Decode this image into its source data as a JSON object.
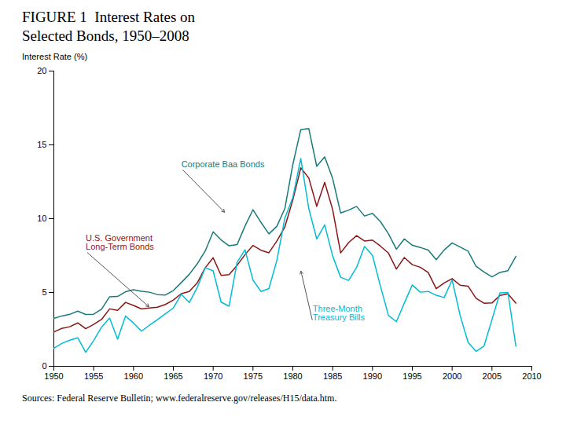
{
  "chart_data": {
    "type": "line",
    "title": "FIGURE 1  Interest Rates on",
    "subtitle": "Selected Bonds, 1950–2008",
    "ylabel": "Interest Rate (%)",
    "source": "Sources: Federal Reserve Bulletin; www.federalreserve.gov/releases/H15/data.htm.",
    "xlim": [
      1950,
      2010
    ],
    "ylim": [
      0,
      20
    ],
    "xticks": [
      1950,
      1955,
      1960,
      1965,
      1970,
      1975,
      1980,
      1985,
      1990,
      1995,
      2000,
      2005,
      2010
    ],
    "yticks": [
      0,
      5,
      10,
      15,
      20
    ],
    "x": [
      1950,
      1951,
      1952,
      1953,
      1954,
      1955,
      1956,
      1957,
      1958,
      1959,
      1960,
      1961,
      1962,
      1963,
      1964,
      1965,
      1966,
      1967,
      1968,
      1969,
      1970,
      1971,
      1972,
      1973,
      1974,
      1975,
      1976,
      1977,
      1978,
      1979,
      1980,
      1981,
      1982,
      1983,
      1984,
      1985,
      1986,
      1987,
      1988,
      1989,
      1990,
      1991,
      1992,
      1993,
      1994,
      1995,
      1996,
      1997,
      1998,
      1999,
      2000,
      2001,
      2002,
      2003,
      2004,
      2005,
      2006,
      2007,
      2008
    ],
    "series": [
      {
        "name": "Corporate Baa Bonds",
        "color": "#1a7a7a",
        "values": [
          3.24,
          3.41,
          3.52,
          3.74,
          3.51,
          3.53,
          3.88,
          4.71,
          4.73,
          5.05,
          5.19,
          5.08,
          5.02,
          4.86,
          4.83,
          5.13,
          5.67,
          6.23,
          6.94,
          7.81,
          9.11,
          8.56,
          8.16,
          8.24,
          9.5,
          10.61,
          9.75,
          8.97,
          9.49,
          10.69,
          13.67,
          16.04,
          16.11,
          13.55,
          14.19,
          12.72,
          10.39,
          10.58,
          10.83,
          10.18,
          10.36,
          9.8,
          8.98,
          7.93,
          8.63,
          8.2,
          8.05,
          7.87,
          7.22,
          7.88,
          8.36,
          8.08,
          7.8,
          6.77,
          6.39,
          6.06,
          6.36,
          6.48,
          7.44
        ]
      },
      {
        "name": "U.S. Government\nLong-Term Bonds",
        "color": "#8b1515",
        "values": [
          2.32,
          2.57,
          2.68,
          2.94,
          2.55,
          2.84,
          3.18,
          3.89,
          3.79,
          4.33,
          4.12,
          3.88,
          3.95,
          4.0,
          4.19,
          4.49,
          4.92,
          5.07,
          5.65,
          6.67,
          7.35,
          6.16,
          6.21,
          6.84,
          7.56,
          8.19,
          7.86,
          7.69,
          8.49,
          9.44,
          11.27,
          13.44,
          12.76,
          10.84,
          12.46,
          10.62,
          7.68,
          8.38,
          8.85,
          8.49,
          8.55,
          8.14,
          7.67,
          6.59,
          7.37,
          6.88,
          6.71,
          6.35,
          5.26,
          5.64,
          5.94,
          5.49,
          5.43,
          4.61,
          4.27,
          4.29,
          4.8,
          4.91,
          4.28
        ]
      },
      {
        "name": "Three-Month\nTreasury Bills",
        "color": "#00bcd4",
        "values": [
          1.22,
          1.55,
          1.77,
          1.93,
          0.95,
          1.75,
          2.66,
          3.27,
          1.84,
          3.4,
          2.93,
          2.38,
          2.78,
          3.16,
          3.56,
          3.95,
          4.88,
          4.32,
          5.34,
          6.68,
          6.46,
          4.35,
          4.07,
          7.04,
          7.89,
          5.84,
          5.07,
          5.27,
          7.19,
          10.04,
          11.44,
          14.07,
          10.69,
          8.63,
          9.58,
          7.48,
          6.03,
          5.82,
          6.69,
          8.12,
          7.51,
          5.42,
          3.45,
          3.02,
          4.29,
          5.51,
          5.02,
          5.07,
          4.81,
          4.66,
          5.85,
          3.45,
          1.62,
          1.01,
          1.37,
          3.16,
          4.97,
          5.0,
          1.37
        ]
      }
    ],
    "annotations": [
      {
        "text": "Corporate Baa Bonds",
        "x": 1971.5,
        "y": 10.4,
        "text_x": 1966.0,
        "text_y": 13.4,
        "color": "#1a7a7a"
      },
      {
        "text": "U.S. Government\nLong-Term Bonds",
        "x": 1962.0,
        "y": 4.0,
        "text_x": 1954.0,
        "text_y": 7.8,
        "color": "#8b1515"
      },
      {
        "text": "Three-Month\nTreasury Bills",
        "x": 1981.0,
        "y": 6.5,
        "text_x": 1982.5,
        "text_y": 3.0,
        "color": "#00bcd4"
      }
    ]
  }
}
